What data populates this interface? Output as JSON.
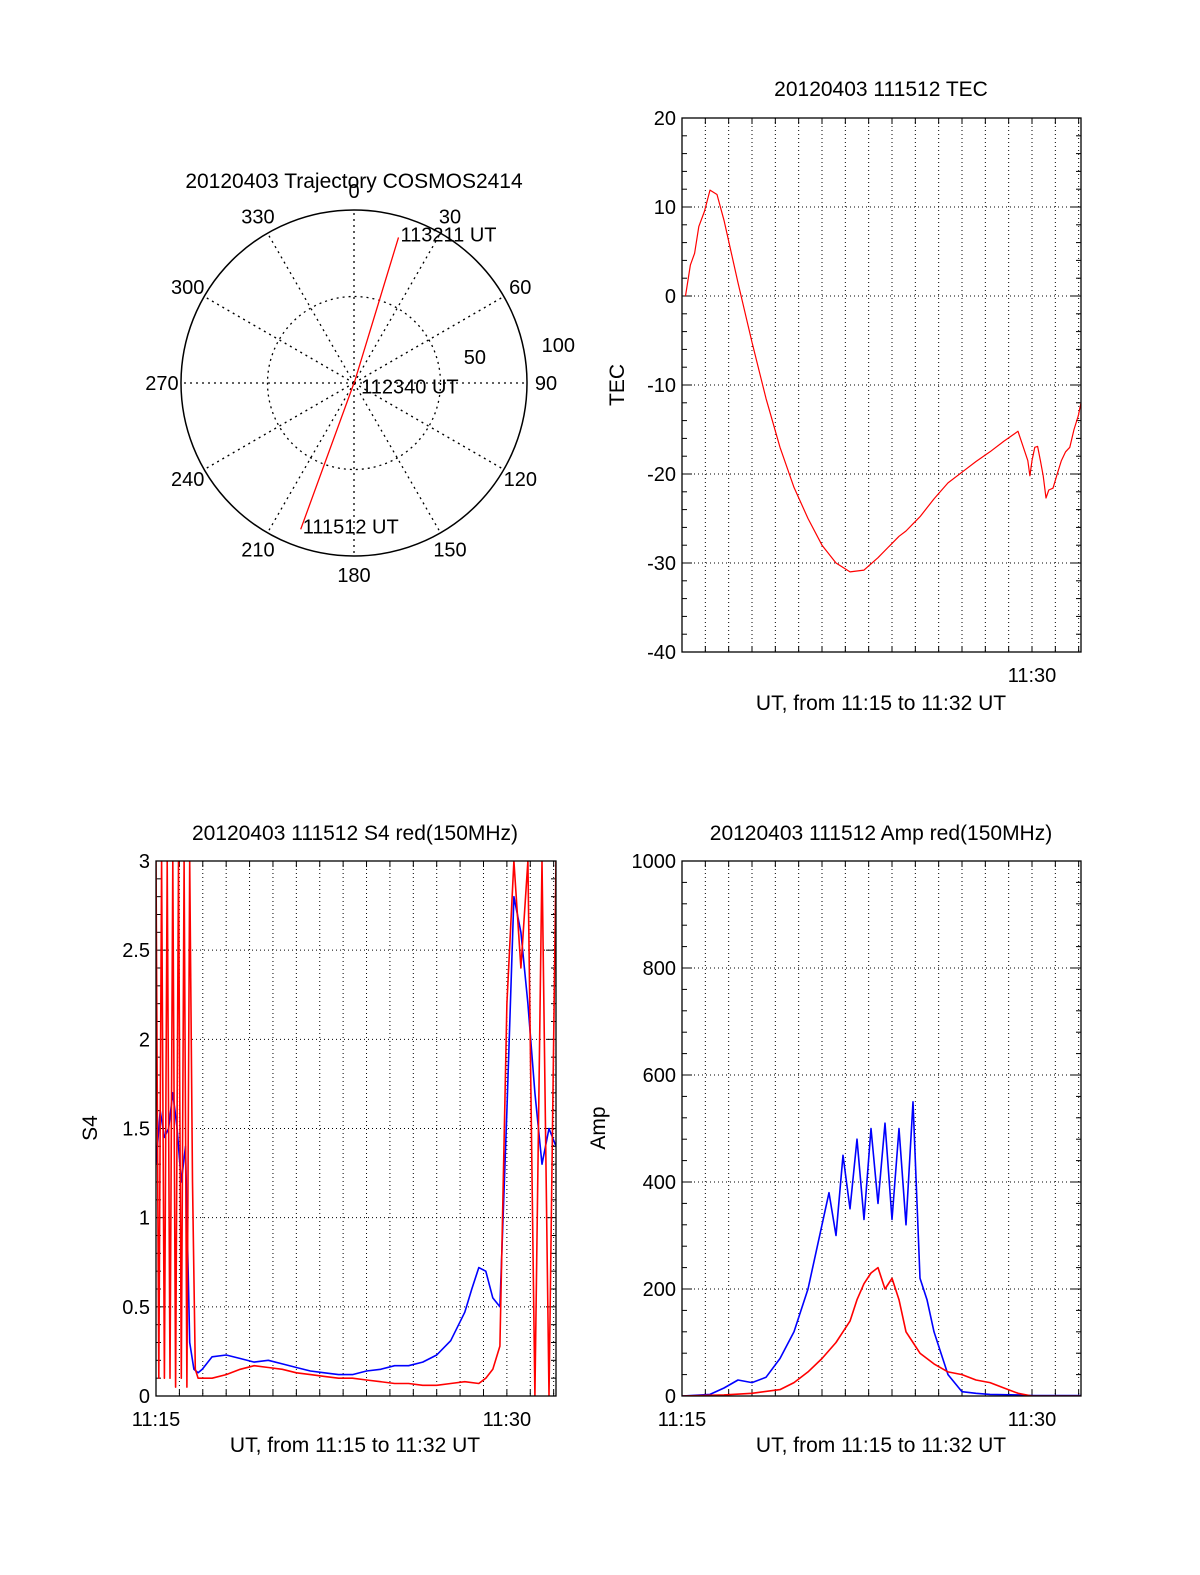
{
  "colors": {
    "primary_series": "#ff0000",
    "secondary_series": "#0000ff",
    "axes": "#000000",
    "grid": "#000000"
  },
  "chart_data": [
    {
      "type": "polar",
      "id": "trajectory",
      "title": "20120403 Trajectory COSMOS2414",
      "angle_labels": [
        "0",
        "30",
        "60",
        "90",
        "120",
        "150",
        "180",
        "210",
        "240",
        "270",
        "300",
        "330"
      ],
      "radius_labels": [
        "50",
        "100"
      ],
      "radius_range": [
        0,
        100
      ],
      "grid": true,
      "track": {
        "color": "#ff0000",
        "points": [
          {
            "az": 200,
            "r": 90,
            "label": "111512 UT"
          },
          {
            "az": 20,
            "r": 2,
            "label": "112340 UT"
          },
          {
            "az": 17,
            "r": 88,
            "label": "113211 UT"
          }
        ]
      }
    },
    {
      "type": "line",
      "id": "tec",
      "title": "20120403 111512 TEC",
      "xlabel": "UT, from 11:15 to 11:32 UT",
      "ylabel": "TEC",
      "xlim": [
        11.25,
        11.535
      ],
      "ylim": [
        -40,
        20
      ],
      "yticks": [
        "20",
        "10",
        "0",
        "-10",
        "-20",
        "-30",
        "-40"
      ],
      "xticks": [
        {
          "value": 11.5,
          "label": "11:30"
        }
      ],
      "grid": true,
      "series": [
        {
          "color": "#ff0000",
          "x": [
            11.2525,
            11.256,
            11.259,
            11.262,
            11.266,
            11.27,
            11.275,
            11.28,
            11.29,
            11.3,
            11.31,
            11.32,
            11.33,
            11.34,
            11.35,
            11.36,
            11.37,
            11.38,
            11.39,
            11.4,
            11.405,
            11.41,
            11.415,
            11.42,
            11.43,
            11.44,
            11.45,
            11.46,
            11.47,
            11.48,
            11.49,
            11.497,
            11.4985,
            11.5,
            11.502,
            11.504,
            11.506,
            11.508,
            11.51,
            11.512,
            11.515,
            11.518,
            11.521,
            11.524,
            11.527,
            11.53,
            11.533,
            11.535
          ],
          "y": [
            0,
            3.5,
            4.8,
            7.8,
            9.5,
            11.9,
            11.4,
            8.5,
            1.5,
            -5.2,
            -11.5,
            -17,
            -21.5,
            -25,
            -28,
            -30,
            -31,
            -30.8,
            -29.4,
            -27.8,
            -27,
            -26.4,
            -25.6,
            -24.8,
            -22.8,
            -21,
            -19.8,
            -18.6,
            -17.5,
            -16.3,
            -15.2,
            -18.5,
            -20.2,
            -18.5,
            -17,
            -16.9,
            -18.5,
            -20.2,
            -22.7,
            -21.8,
            -21.6,
            -20,
            -18.5,
            -17.5,
            -17,
            -15,
            -13.5,
            -12
          ]
        }
      ]
    },
    {
      "type": "line",
      "id": "s4",
      "title": "20120403 111512 S4 red(150MHz)",
      "xlabel": "UT, from 11:15 to 11:32 UT",
      "ylabel": "S4",
      "xlim": [
        11.25,
        11.535
      ],
      "ylim": [
        0,
        3
      ],
      "yticks": [
        "3",
        "2.5",
        "2",
        "1.5",
        "1",
        "0.5",
        "0"
      ],
      "xticks": [
        {
          "value": 11.25,
          "label": "11:15"
        },
        {
          "value": 11.5,
          "label": "11:30"
        }
      ],
      "grid": true,
      "series": [
        {
          "color": "#0000ff",
          "x": [
            11.25,
            11.253,
            11.256,
            11.259,
            11.262,
            11.265,
            11.268,
            11.271,
            11.274,
            11.277,
            11.28,
            11.283,
            11.29,
            11.3,
            11.31,
            11.32,
            11.33,
            11.34,
            11.35,
            11.36,
            11.37,
            11.38,
            11.39,
            11.4,
            11.41,
            11.42,
            11.43,
            11.44,
            11.45,
            11.46,
            11.47,
            11.475,
            11.48,
            11.485,
            11.49,
            11.495,
            11.5,
            11.505,
            11.51,
            11.515,
            11.52,
            11.525,
            11.53,
            11.535
          ],
          "y": [
            1.3,
            1.6,
            1.45,
            1.5,
            1.7,
            1.5,
            1.2,
            1.4,
            0.3,
            0.15,
            0.13,
            0.15,
            0.22,
            0.23,
            0.21,
            0.19,
            0.2,
            0.18,
            0.16,
            0.14,
            0.13,
            0.12,
            0.12,
            0.14,
            0.15,
            0.17,
            0.17,
            0.19,
            0.23,
            0.31,
            0.47,
            0.6,
            0.72,
            0.7,
            0.55,
            0.5,
            1.6,
            2.8,
            2.6,
            2.2,
            1.7,
            1.3,
            1.5,
            1.4
          ]
        },
        {
          "color": "#ff0000",
          "x": [
            11.25,
            11.252,
            11.254,
            11.256,
            11.258,
            11.26,
            11.262,
            11.264,
            11.266,
            11.268,
            11.27,
            11.272,
            11.274,
            11.276,
            11.278,
            11.28,
            11.283,
            11.29,
            11.3,
            11.31,
            11.32,
            11.33,
            11.34,
            11.35,
            11.36,
            11.37,
            11.38,
            11.39,
            11.4,
            11.41,
            11.42,
            11.43,
            11.44,
            11.45,
            11.46,
            11.47,
            11.48,
            11.485,
            11.49,
            11.495,
            11.5,
            11.505,
            11.51,
            11.515,
            11.52,
            11.525,
            11.53,
            11.535
          ],
          "y": [
            3,
            0.1,
            3,
            0.1,
            3,
            0.1,
            3,
            0.05,
            3,
            0.1,
            3,
            0.05,
            3,
            1.2,
            0.15,
            0.1,
            0.1,
            0.1,
            0.12,
            0.15,
            0.17,
            0.16,
            0.15,
            0.13,
            0.12,
            0.11,
            0.1,
            0.1,
            0.09,
            0.08,
            0.07,
            0.07,
            0.06,
            0.06,
            0.07,
            0.08,
            0.07,
            0.1,
            0.15,
            0.28,
            2.2,
            3,
            2.4,
            3,
            0,
            3,
            0,
            3
          ]
        }
      ]
    },
    {
      "type": "line",
      "id": "amp",
      "title": "20120403 111512 Amp red(150MHz)",
      "xlabel": "UT, from 11:15 to 11:32 UT",
      "ylabel": "Amp",
      "xlim": [
        11.25,
        11.535
      ],
      "ylim": [
        0,
        1000
      ],
      "yticks": [
        "1000",
        "800",
        "600",
        "400",
        "200",
        "0"
      ],
      "xticks": [
        {
          "value": 11.25,
          "label": "11:15"
        },
        {
          "value": 11.5,
          "label": "11:30"
        }
      ],
      "grid": true,
      "series": [
        {
          "color": "#0000ff",
          "x": [
            11.25,
            11.27,
            11.28,
            11.29,
            11.3,
            11.31,
            11.32,
            11.33,
            11.335,
            11.34,
            11.345,
            11.35,
            11.355,
            11.36,
            11.365,
            11.37,
            11.375,
            11.38,
            11.385,
            11.39,
            11.395,
            11.4,
            11.405,
            11.41,
            11.415,
            11.42,
            11.425,
            11.43,
            11.435,
            11.44,
            11.45,
            11.46,
            11.47,
            11.49,
            11.5,
            11.535
          ],
          "y": [
            0,
            3,
            15,
            30,
            25,
            35,
            70,
            120,
            160,
            200,
            260,
            320,
            380,
            300,
            450,
            350,
            480,
            330,
            500,
            360,
            510,
            330,
            500,
            320,
            550,
            220,
            180,
            120,
            80,
            40,
            8,
            5,
            3,
            2,
            1,
            1
          ]
        },
        {
          "color": "#ff0000",
          "x": [
            11.25,
            11.28,
            11.3,
            11.32,
            11.33,
            11.34,
            11.35,
            11.36,
            11.37,
            11.375,
            11.38,
            11.385,
            11.39,
            11.395,
            11.4,
            11.405,
            11.41,
            11.415,
            11.42,
            11.43,
            11.44,
            11.45,
            11.46,
            11.47,
            11.48,
            11.49,
            11.5,
            11.535
          ],
          "y": [
            0,
            2,
            5,
            12,
            25,
            45,
            70,
            100,
            140,
            180,
            210,
            230,
            240,
            200,
            220,
            180,
            120,
            100,
            80,
            60,
            45,
            40,
            30,
            25,
            15,
            5,
            0,
            0
          ]
        }
      ]
    }
  ]
}
